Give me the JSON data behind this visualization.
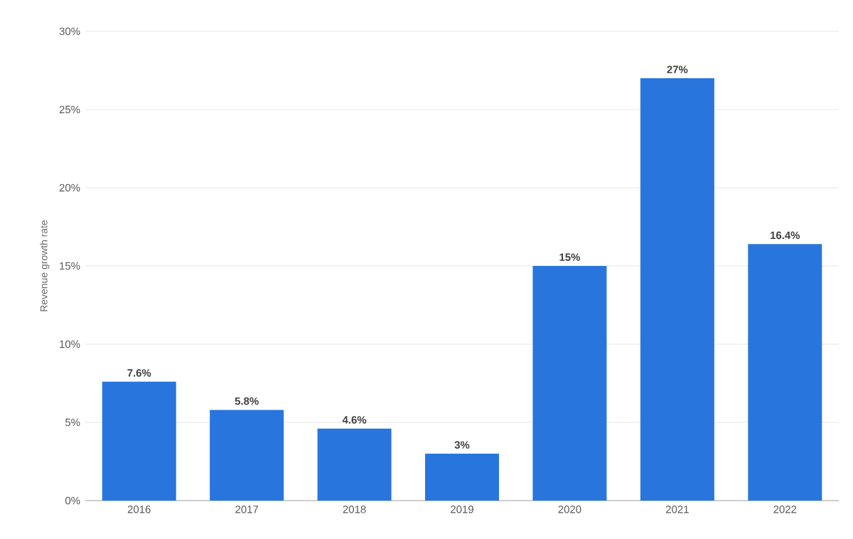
{
  "chart_data": {
    "type": "bar",
    "ylabel": "Revenue growth rate",
    "categories": [
      "2016",
      "2017",
      "2018",
      "2019",
      "2020",
      "2021",
      "2022"
    ],
    "values": [
      7.6,
      5.8,
      4.6,
      3,
      15,
      27,
      16.4
    ],
    "value_labels": [
      "7.6%",
      "5.8%",
      "4.6%",
      "3%",
      "15%",
      "27%",
      "16.4%"
    ],
    "color": "#2876dd",
    "ylim": [
      0,
      30
    ],
    "yticks": [
      {
        "value": 0,
        "label": "0%"
      },
      {
        "value": 5,
        "label": "5%"
      },
      {
        "value": 10,
        "label": "10%"
      },
      {
        "value": 15,
        "label": "15%"
      },
      {
        "value": 20,
        "label": "20%"
      },
      {
        "value": 25,
        "label": "25%"
      },
      {
        "value": 30,
        "label": "30%"
      }
    ],
    "grid": "y"
  }
}
